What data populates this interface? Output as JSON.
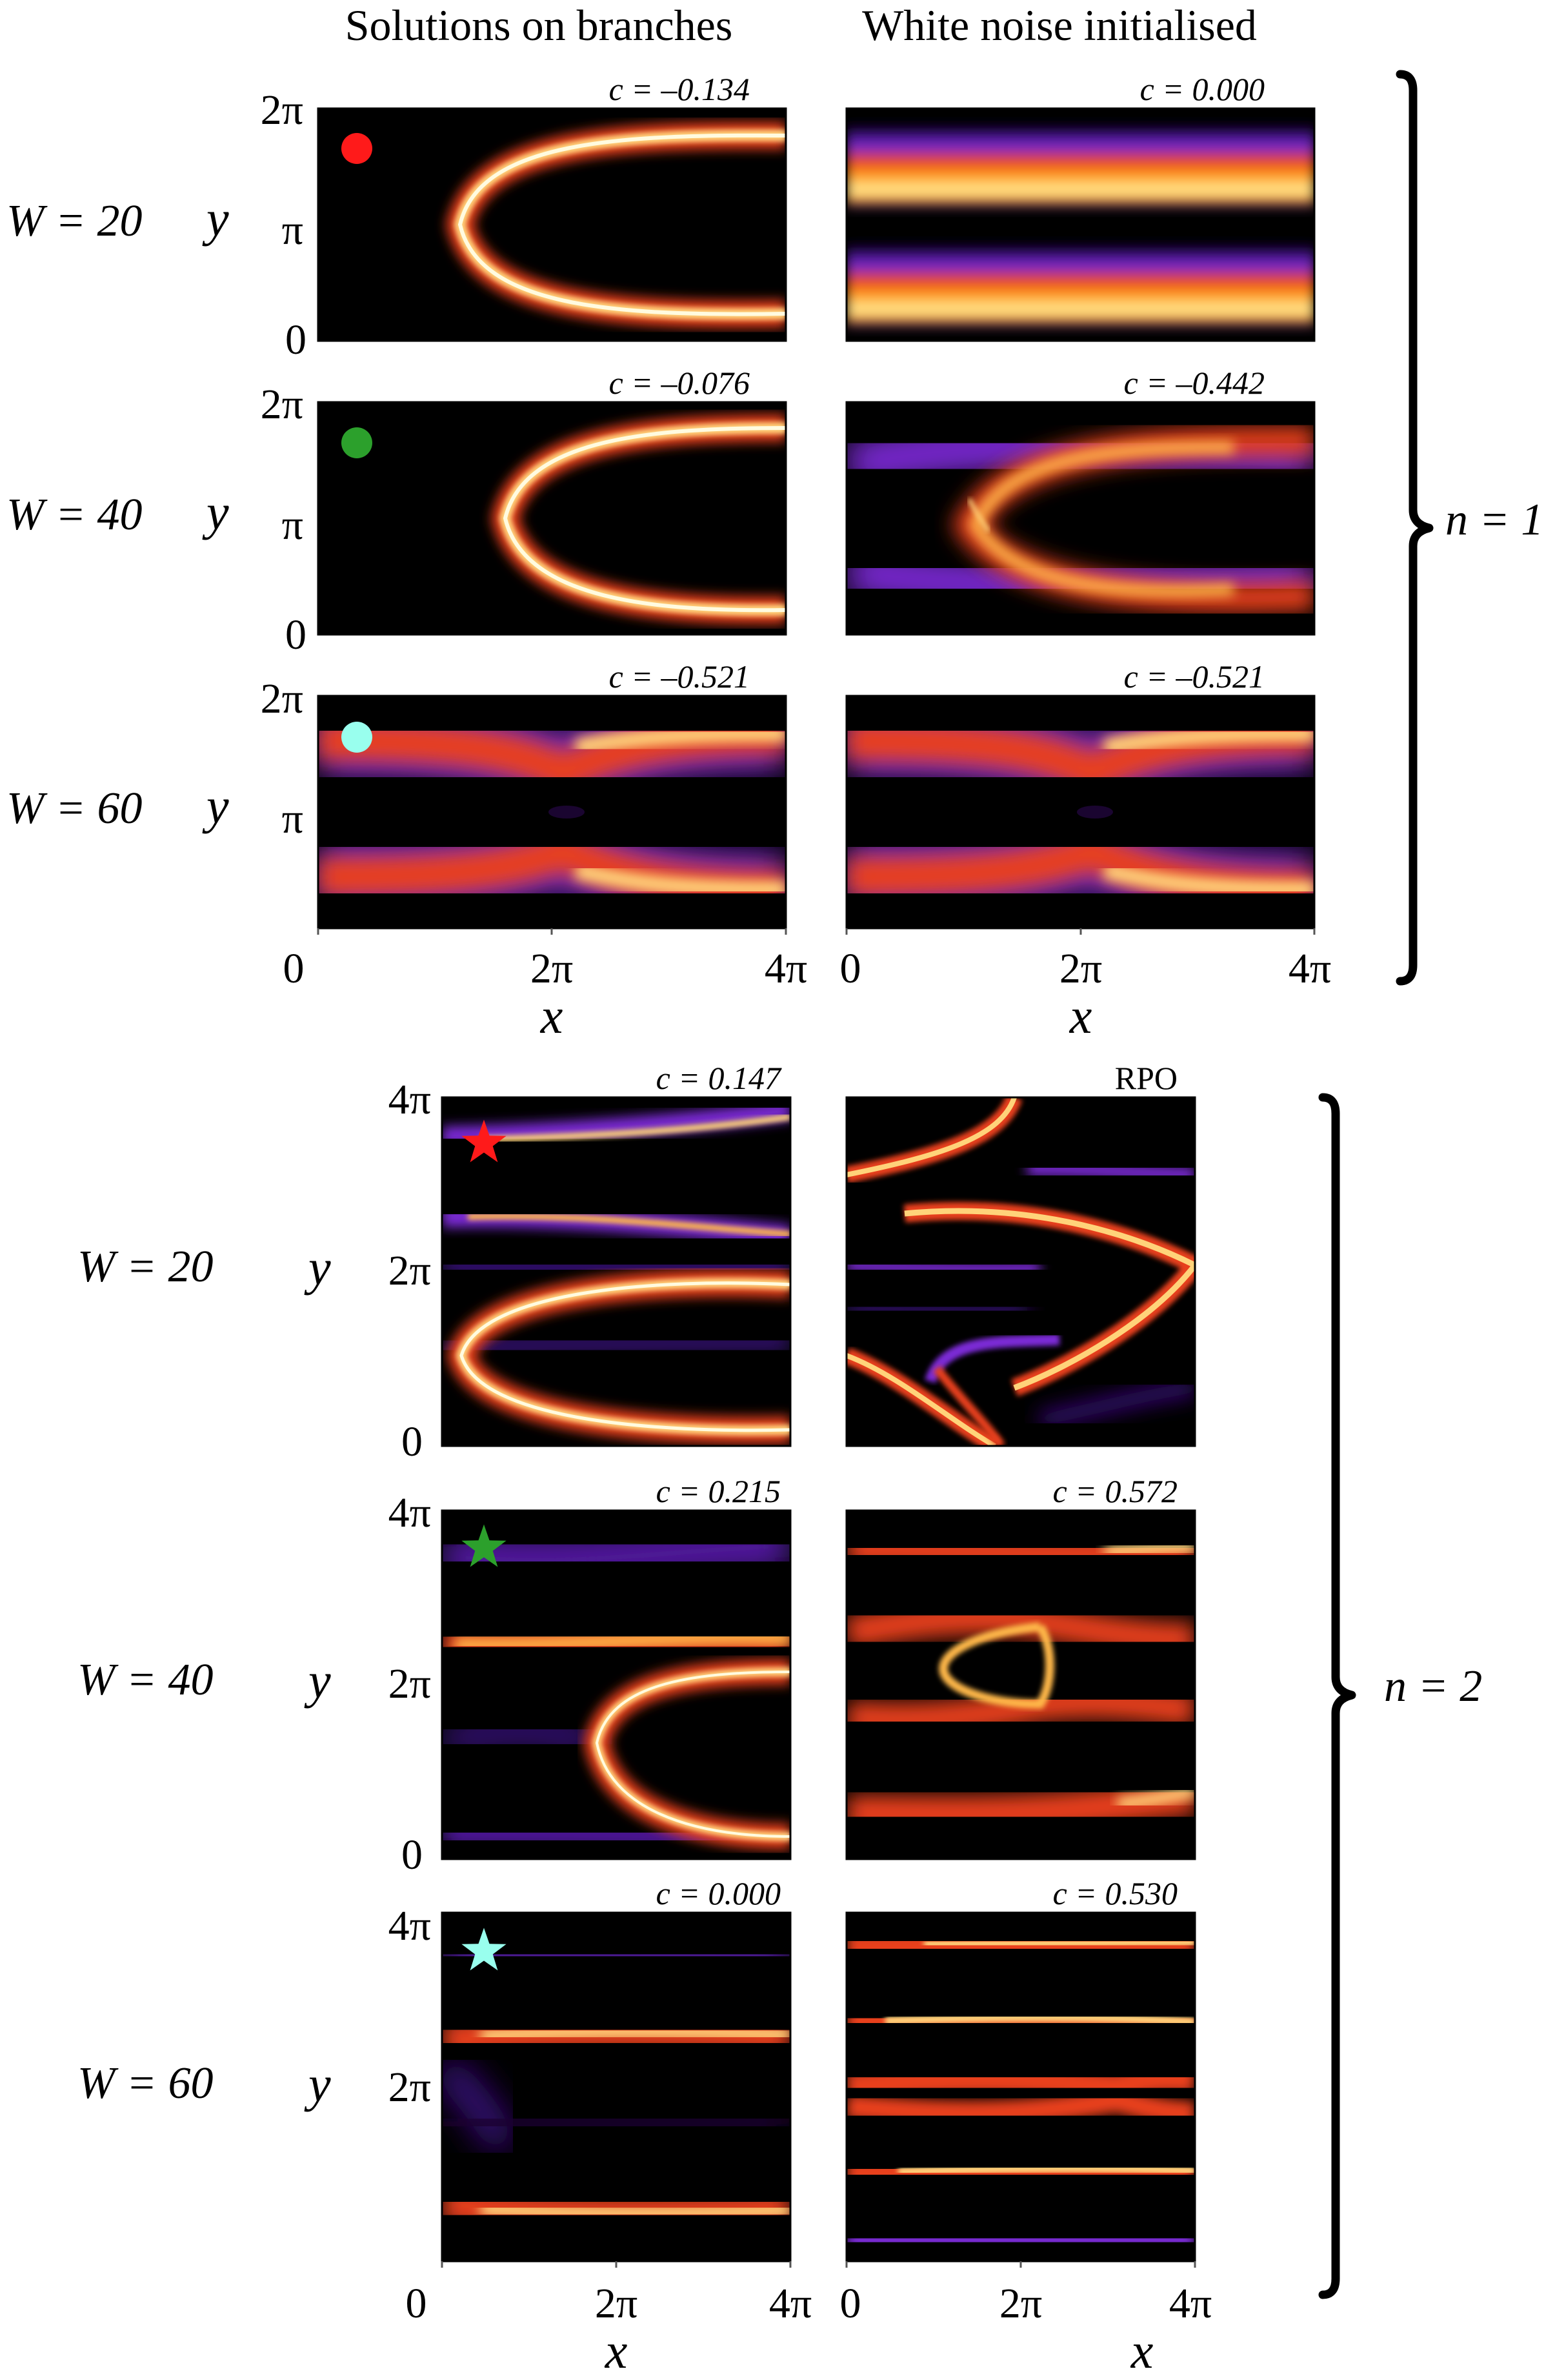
{
  "column_titles": {
    "left": "Solutions on branches",
    "right": "White noise initialised"
  },
  "groups": [
    {
      "label": "n = 1",
      "rows": [
        {
          "W": "W = 20",
          "left_c": "c = –0.134",
          "right_c": "c = 0.000",
          "marker": {
            "shape": "dot",
            "color": "#ff1a1a"
          }
        },
        {
          "W": "W = 40",
          "left_c": "c = –0.076",
          "right_c": "c = –0.442",
          "marker": {
            "shape": "dot",
            "color": "#2ca02c"
          }
        },
        {
          "W": "W = 60",
          "left_c": "c = –0.521",
          "right_c": "c = –0.521",
          "marker": {
            "shape": "dot",
            "color": "#99ffee"
          }
        }
      ],
      "y_ticks": [
        "2π",
        "π",
        "0"
      ],
      "x_ticks": [
        "0",
        "2π",
        "4π"
      ]
    },
    {
      "label": "n = 2",
      "rows": [
        {
          "W": "W = 20",
          "left_c": "c = 0.147",
          "right_c": "RPO",
          "marker": {
            "shape": "star",
            "color": "#ff1a1a"
          }
        },
        {
          "W": "W = 40",
          "left_c": "c = 0.215",
          "right_c": "c = 0.572",
          "marker": {
            "shape": "star",
            "color": "#2ca02c"
          }
        },
        {
          "W": "W = 60",
          "left_c": "c = 0.000",
          "right_c": "c = 0.530",
          "marker": {
            "shape": "star",
            "color": "#99ffee"
          }
        }
      ],
      "y_ticks": [
        "4π",
        "2π",
        "0"
      ],
      "x_ticks": [
        "0",
        "2π",
        "4π"
      ]
    }
  ],
  "axis_labels": {
    "x": "x",
    "y": "y"
  },
  "colormap": [
    "#000000",
    "#2a0a5e",
    "#7b2bd6",
    "#e8411f",
    "#ff9a1a",
    "#fff2a0"
  ]
}
